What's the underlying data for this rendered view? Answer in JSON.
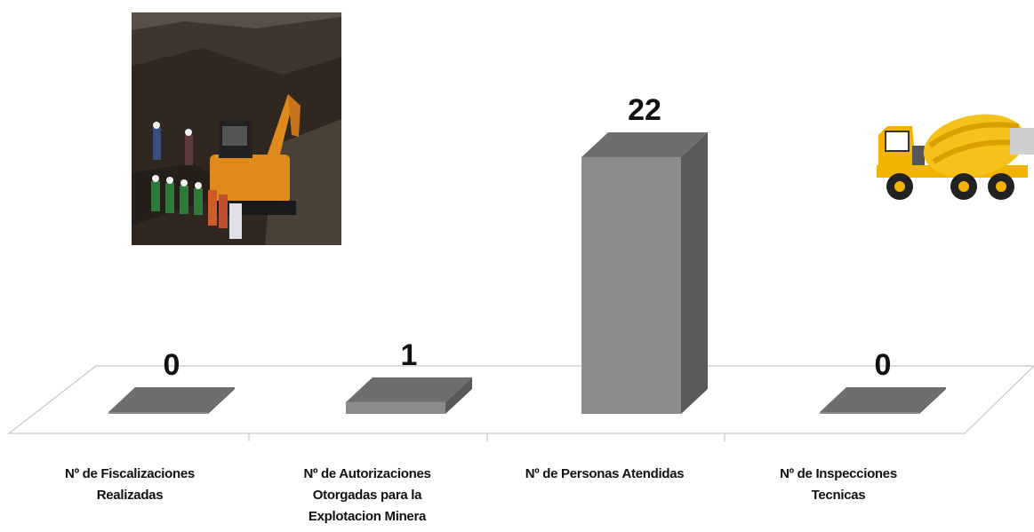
{
  "chart_data": {
    "type": "bar",
    "categories": [
      [
        "Nº de Fiscalizaciones",
        "Realizadas"
      ],
      [
        "Nº de Autorizaciones",
        "Otorgadas para la",
        "Explotacion Minera"
      ],
      [
        "Nº de Personas Atendidas"
      ],
      [
        "Nº de Inspecciones",
        "Tecnicas"
      ]
    ],
    "values": [
      0,
      1,
      22,
      0
    ],
    "data_labels": [
      "0",
      "1",
      "22",
      "0"
    ],
    "ylim": [
      0,
      22
    ],
    "grid": false,
    "legend": "none",
    "colors": {
      "bar_front": "#8c8c8c",
      "bar_side": "#595959",
      "bar_top": "#6e6e6e",
      "floor_line": "#c8c8c8",
      "label": "#111111"
    }
  },
  "images": {
    "left_photo": "excavator-mining-rescue-photo",
    "right_icon": "cement-mixer-truck-icon"
  }
}
